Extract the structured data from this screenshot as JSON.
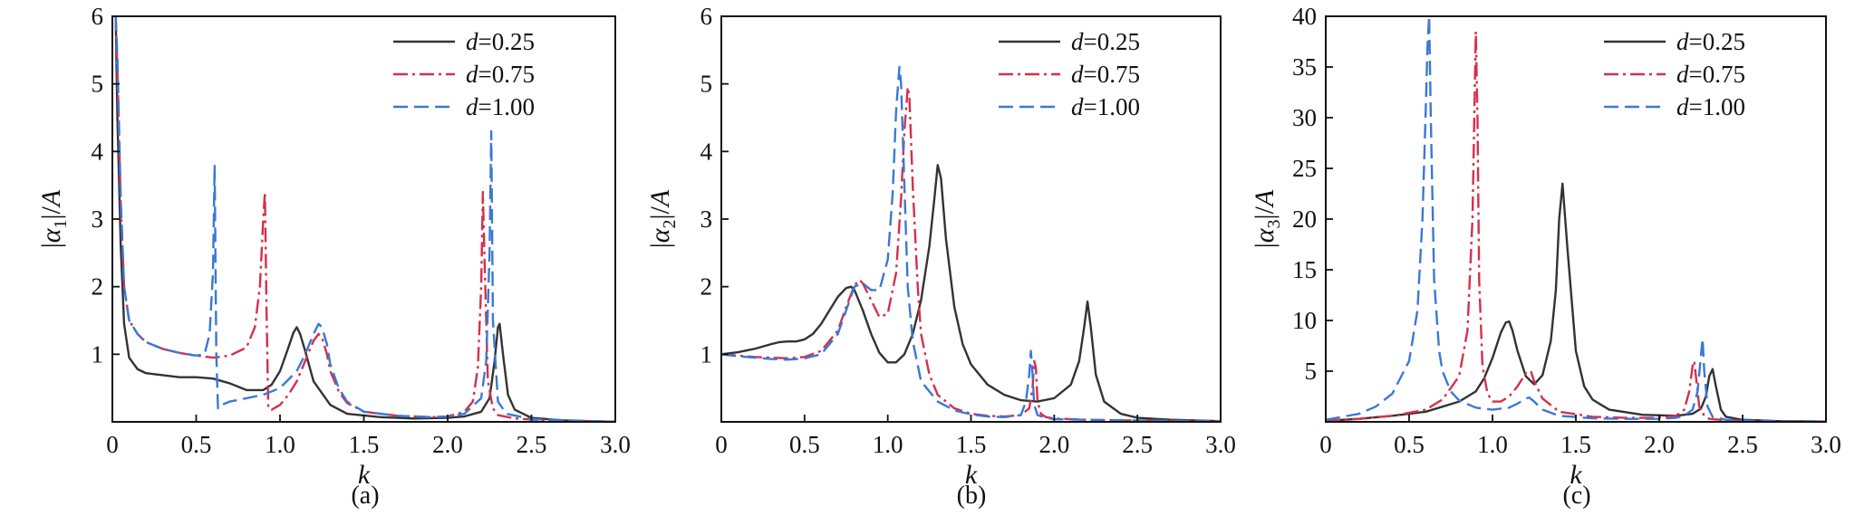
{
  "chart_data": [
    {
      "type": "line",
      "caption": "(a)",
      "xlabel": "k",
      "ylabel": "|α₁|/A",
      "ylabel_letter": "α",
      "ylabel_sub": "1",
      "ylabel_tail": "A",
      "xlim": [
        0,
        3.0
      ],
      "ylim": [
        0,
        6
      ],
      "xticks": [
        0,
        0.5,
        1.0,
        1.5,
        2.0,
        2.5,
        3.0
      ],
      "xtick_labels": [
        "0",
        "0.5",
        "1.0",
        "1.5",
        "2.0",
        "2.5",
        "3.0"
      ],
      "yticks": [
        0,
        1,
        2,
        3,
        4,
        5,
        6
      ],
      "ytick_labels": [
        "",
        "1",
        "2",
        "3",
        "4",
        "5",
        "6"
      ],
      "legend_position": "top-right",
      "series": [
        {
          "name": "d=0.25",
          "name_var": "d",
          "name_value": "=0.25",
          "color": "#333333",
          "dash": "solid",
          "x": [
            0.02,
            0.03,
            0.05,
            0.07,
            0.1,
            0.15,
            0.2,
            0.3,
            0.4,
            0.5,
            0.6,
            0.7,
            0.8,
            0.9,
            0.95,
            1.0,
            1.05,
            1.08,
            1.1,
            1.12,
            1.15,
            1.2,
            1.3,
            1.4,
            1.6,
            1.8,
            2.0,
            2.1,
            2.2,
            2.25,
            2.28,
            2.3,
            2.31,
            2.33,
            2.36,
            2.4,
            2.5,
            2.7,
            3.0
          ],
          "y": [
            6.0,
            4.5,
            2.6,
            1.45,
            0.95,
            0.78,
            0.72,
            0.69,
            0.66,
            0.66,
            0.64,
            0.57,
            0.47,
            0.47,
            0.55,
            0.75,
            1.1,
            1.32,
            1.4,
            1.3,
            1.05,
            0.6,
            0.25,
            0.12,
            0.07,
            0.05,
            0.06,
            0.08,
            0.15,
            0.35,
            0.9,
            1.4,
            1.45,
            1.0,
            0.4,
            0.18,
            0.06,
            0.02,
            0.0
          ]
        },
        {
          "name": "d=0.75",
          "name_var": "d",
          "name_value": "=0.75",
          "color": "#d72f4a",
          "dash": "dashdot",
          "x": [
            0.02,
            0.03,
            0.05,
            0.07,
            0.1,
            0.15,
            0.2,
            0.3,
            0.4,
            0.5,
            0.6,
            0.7,
            0.8,
            0.85,
            0.88,
            0.9,
            0.91,
            0.92,
            0.93,
            0.95,
            1.0,
            1.05,
            1.1,
            1.15,
            1.2,
            1.23,
            1.25,
            1.28,
            1.3,
            1.35,
            1.4,
            1.5,
            1.7,
            1.9,
            2.0,
            2.1,
            2.15,
            2.18,
            2.2,
            2.21,
            2.22,
            2.24,
            2.27,
            2.3,
            2.4,
            2.6,
            3.0
          ],
          "y": [
            6.0,
            5.2,
            3.2,
            2.0,
            1.5,
            1.3,
            1.18,
            1.08,
            1.02,
            0.98,
            0.95,
            0.98,
            1.1,
            1.4,
            2.0,
            3.0,
            3.4,
            1.6,
            0.2,
            0.18,
            0.25,
            0.4,
            0.6,
            0.9,
            1.2,
            1.3,
            1.25,
            1.0,
            0.75,
            0.45,
            0.28,
            0.15,
            0.09,
            0.07,
            0.08,
            0.15,
            0.3,
            0.8,
            2.0,
            3.4,
            2.4,
            0.6,
            0.2,
            0.1,
            0.05,
            0.02,
            0.0
          ]
        },
        {
          "name": "d=1.00",
          "name_var": "d",
          "name_value": "=1.00",
          "color": "#3a78d6",
          "dash": "dashed",
          "x": [
            0.02,
            0.03,
            0.05,
            0.07,
            0.1,
            0.15,
            0.2,
            0.3,
            0.4,
            0.5,
            0.55,
            0.58,
            0.6,
            0.61,
            0.62,
            0.63,
            0.65,
            0.7,
            0.8,
            0.9,
            1.0,
            1.1,
            1.15,
            1.2,
            1.23,
            1.25,
            1.28,
            1.3,
            1.35,
            1.4,
            1.5,
            1.7,
            1.9,
            2.0,
            2.1,
            2.2,
            2.23,
            2.25,
            2.26,
            2.27,
            2.3,
            2.35,
            2.5,
            3.0
          ],
          "y": [
            6.0,
            5.4,
            3.3,
            2.0,
            1.5,
            1.3,
            1.18,
            1.08,
            1.02,
            0.98,
            1.0,
            1.3,
            2.2,
            3.8,
            1.0,
            0.2,
            0.25,
            0.3,
            0.35,
            0.4,
            0.5,
            0.75,
            1.0,
            1.3,
            1.45,
            1.4,
            1.15,
            0.85,
            0.5,
            0.3,
            0.15,
            0.09,
            0.07,
            0.08,
            0.12,
            0.35,
            0.9,
            2.5,
            4.3,
            1.5,
            0.3,
            0.12,
            0.04,
            0.0
          ]
        }
      ]
    },
    {
      "type": "line",
      "caption": "(b)",
      "xlabel": "k",
      "ylabel": "|α₂|/A",
      "ylabel_letter": "α",
      "ylabel_sub": "2",
      "ylabel_tail": "A",
      "xlim": [
        0,
        3.0
      ],
      "ylim": [
        0,
        6
      ],
      "xticks": [
        0,
        0.5,
        1.0,
        1.5,
        2.0,
        2.5,
        3.0
      ],
      "xtick_labels": [
        "0",
        "0.5",
        "1.0",
        "1.5",
        "2.0",
        "2.5",
        "3.0"
      ],
      "yticks": [
        0,
        1,
        2,
        3,
        4,
        5,
        6
      ],
      "ytick_labels": [
        "",
        "1",
        "2",
        "3",
        "4",
        "5",
        "6"
      ],
      "legend_position": "top-right",
      "series": [
        {
          "name": "d=0.25",
          "name_var": "d",
          "name_value": "=0.25",
          "color": "#333333",
          "dash": "solid",
          "x": [
            0.0,
            0.1,
            0.2,
            0.3,
            0.35,
            0.4,
            0.45,
            0.5,
            0.55,
            0.6,
            0.65,
            0.7,
            0.75,
            0.78,
            0.8,
            0.85,
            0.9,
            0.95,
            1.0,
            1.05,
            1.1,
            1.15,
            1.2,
            1.25,
            1.28,
            1.3,
            1.32,
            1.35,
            1.4,
            1.45,
            1.5,
            1.6,
            1.7,
            1.8,
            1.9,
            2.0,
            2.1,
            2.15,
            2.18,
            2.2,
            2.22,
            2.25,
            2.3,
            2.4,
            2.5,
            2.7,
            3.0
          ],
          "y": [
            1.0,
            1.03,
            1.08,
            1.15,
            1.18,
            1.19,
            1.19,
            1.22,
            1.3,
            1.45,
            1.65,
            1.85,
            1.98,
            2.0,
            1.95,
            1.65,
            1.3,
            1.02,
            0.88,
            0.88,
            1.0,
            1.3,
            1.8,
            2.6,
            3.3,
            3.8,
            3.6,
            2.7,
            1.7,
            1.15,
            0.85,
            0.55,
            0.4,
            0.32,
            0.3,
            0.35,
            0.55,
            0.9,
            1.4,
            1.78,
            1.4,
            0.7,
            0.3,
            0.12,
            0.06,
            0.03,
            0.01
          ]
        },
        {
          "name": "d=0.75",
          "name_var": "d",
          "name_value": "=0.75",
          "color": "#d72f4a",
          "dash": "dashdot",
          "x": [
            0.0,
            0.1,
            0.2,
            0.3,
            0.4,
            0.5,
            0.6,
            0.7,
            0.75,
            0.8,
            0.83,
            0.85,
            0.9,
            0.95,
            1.0,
            1.05,
            1.08,
            1.1,
            1.12,
            1.13,
            1.15,
            1.18,
            1.2,
            1.25,
            1.3,
            1.4,
            1.5,
            1.6,
            1.7,
            1.8,
            1.85,
            1.87,
            1.88,
            1.89,
            1.9,
            1.92,
            1.95,
            2.0,
            2.2,
            2.5,
            3.0
          ],
          "y": [
            1.0,
            0.98,
            0.96,
            0.95,
            0.94,
            0.96,
            1.05,
            1.35,
            1.7,
            2.02,
            2.1,
            2.05,
            1.8,
            1.55,
            1.6,
            2.2,
            3.3,
            4.3,
            4.95,
            4.8,
            3.5,
            2.0,
            1.3,
            0.7,
            0.4,
            0.2,
            0.12,
            0.09,
            0.08,
            0.1,
            0.2,
            0.5,
            0.9,
            0.8,
            0.3,
            0.12,
            0.07,
            0.05,
            0.03,
            0.02,
            0.01
          ]
        },
        {
          "name": "d=1.00",
          "name_var": "d",
          "name_value": "=1.00",
          "color": "#3a78d6",
          "dash": "dashed",
          "x": [
            0.0,
            0.1,
            0.2,
            0.3,
            0.4,
            0.5,
            0.6,
            0.7,
            0.75,
            0.8,
            0.85,
            0.9,
            0.95,
            1.0,
            1.03,
            1.05,
            1.07,
            1.08,
            1.1,
            1.12,
            1.15,
            1.2,
            1.3,
            1.4,
            1.5,
            1.6,
            1.7,
            1.8,
            1.83,
            1.85,
            1.86,
            1.87,
            1.88,
            1.9,
            1.95,
            2.0,
            2.2,
            2.5,
            3.0
          ],
          "y": [
            1.0,
            0.97,
            0.95,
            0.93,
            0.92,
            0.94,
            1.0,
            1.3,
            1.65,
            2.0,
            2.05,
            1.95,
            1.95,
            2.4,
            3.4,
            4.6,
            5.25,
            5.0,
            3.5,
            2.0,
            1.2,
            0.6,
            0.3,
            0.17,
            0.11,
            0.08,
            0.07,
            0.1,
            0.3,
            0.7,
            1.05,
            0.7,
            0.25,
            0.1,
            0.06,
            0.04,
            0.03,
            0.02,
            0.01
          ]
        }
      ]
    },
    {
      "type": "line",
      "caption": "(c)",
      "xlabel": "k",
      "ylabel": "|α₃|/A",
      "ylabel_letter": "α",
      "ylabel_sub": "3",
      "ylabel_tail": "A",
      "xlim": [
        0,
        3.0
      ],
      "ylim": [
        0,
        40
      ],
      "xticks": [
        0,
        0.5,
        1.0,
        1.5,
        2.0,
        2.5,
        3.0
      ],
      "xtick_labels": [
        "0",
        "0.5",
        "1.0",
        "1.5",
        "2.0",
        "2.5",
        "3.0"
      ],
      "yticks": [
        0,
        5,
        10,
        15,
        20,
        25,
        30,
        35,
        40
      ],
      "ytick_labels": [
        "",
        "5",
        "10",
        "15",
        "20",
        "25",
        "30",
        "35",
        "40"
      ],
      "legend_position": "top-right",
      "series": [
        {
          "name": "d=0.25",
          "name_var": "d",
          "name_value": "=0.25",
          "color": "#333333",
          "dash": "solid",
          "x": [
            0.0,
            0.2,
            0.4,
            0.6,
            0.8,
            0.9,
            0.95,
            1.0,
            1.05,
            1.08,
            1.1,
            1.12,
            1.15,
            1.2,
            1.25,
            1.3,
            1.35,
            1.38,
            1.4,
            1.42,
            1.45,
            1.5,
            1.55,
            1.6,
            1.7,
            1.9,
            2.1,
            2.2,
            2.25,
            2.28,
            2.3,
            2.32,
            2.34,
            2.37,
            2.4,
            2.5,
            2.7,
            3.0
          ],
          "y": [
            0.1,
            0.3,
            0.6,
            1.0,
            2.0,
            3.0,
            4.3,
            6.3,
            8.8,
            9.8,
            9.9,
            9.0,
            7.0,
            4.5,
            3.7,
            4.6,
            8.0,
            13.0,
            20.0,
            23.5,
            17.0,
            7.0,
            3.5,
            2.2,
            1.2,
            0.7,
            0.6,
            0.8,
            1.3,
            2.5,
            4.5,
            5.2,
            3.5,
            1.2,
            0.5,
            0.2,
            0.08,
            0.03
          ]
        },
        {
          "name": "d=0.75",
          "name_var": "d",
          "name_value": "=0.75",
          "color": "#d72f4a",
          "dash": "dashdot",
          "x": [
            0.0,
            0.2,
            0.4,
            0.6,
            0.7,
            0.8,
            0.85,
            0.88,
            0.9,
            0.91,
            0.92,
            0.94,
            0.97,
            1.0,
            1.05,
            1.1,
            1.15,
            1.2,
            1.23,
            1.25,
            1.3,
            1.4,
            1.6,
            1.8,
            2.0,
            2.1,
            2.15,
            2.18,
            2.2,
            2.21,
            2.22,
            2.24,
            2.27,
            2.3,
            2.4,
            2.6,
            3.0
          ],
          "y": [
            0.1,
            0.3,
            0.6,
            1.2,
            2.2,
            4.5,
            9.0,
            20.0,
            38.5,
            30.0,
            14.0,
            5.5,
            2.8,
            2.0,
            2.0,
            2.5,
            3.5,
            4.8,
            5.0,
            4.0,
            2.3,
            1.0,
            0.5,
            0.4,
            0.4,
            0.6,
            1.2,
            3.0,
            5.5,
            6.0,
            4.5,
            1.5,
            0.6,
            0.3,
            0.15,
            0.05,
            0.02
          ]
        },
        {
          "name": "d=1.00",
          "name_var": "d",
          "name_value": "=1.00",
          "color": "#3a78d6",
          "dash": "dashed",
          "x": [
            0.0,
            0.2,
            0.3,
            0.4,
            0.5,
            0.55,
            0.58,
            0.6,
            0.61,
            0.62,
            0.63,
            0.65,
            0.68,
            0.7,
            0.75,
            0.8,
            0.9,
            1.0,
            1.1,
            1.15,
            1.2,
            1.22,
            1.25,
            1.3,
            1.4,
            1.6,
            1.8,
            2.0,
            2.1,
            2.15,
            2.2,
            2.23,
            2.25,
            2.26,
            2.27,
            2.29,
            2.32,
            2.4,
            2.6,
            3.0
          ],
          "y": [
            0.2,
            0.8,
            1.5,
            2.8,
            6.0,
            11.0,
            20.0,
            31.0,
            37.0,
            40.0,
            30.0,
            14.0,
            7.0,
            5.0,
            3.0,
            2.1,
            1.4,
            1.2,
            1.4,
            1.8,
            2.3,
            2.4,
            2.0,
            1.2,
            0.6,
            0.35,
            0.3,
            0.3,
            0.4,
            0.6,
            1.2,
            3.0,
            6.5,
            8.2,
            5.0,
            1.5,
            0.5,
            0.2,
            0.08,
            0.03
          ]
        }
      ]
    }
  ]
}
